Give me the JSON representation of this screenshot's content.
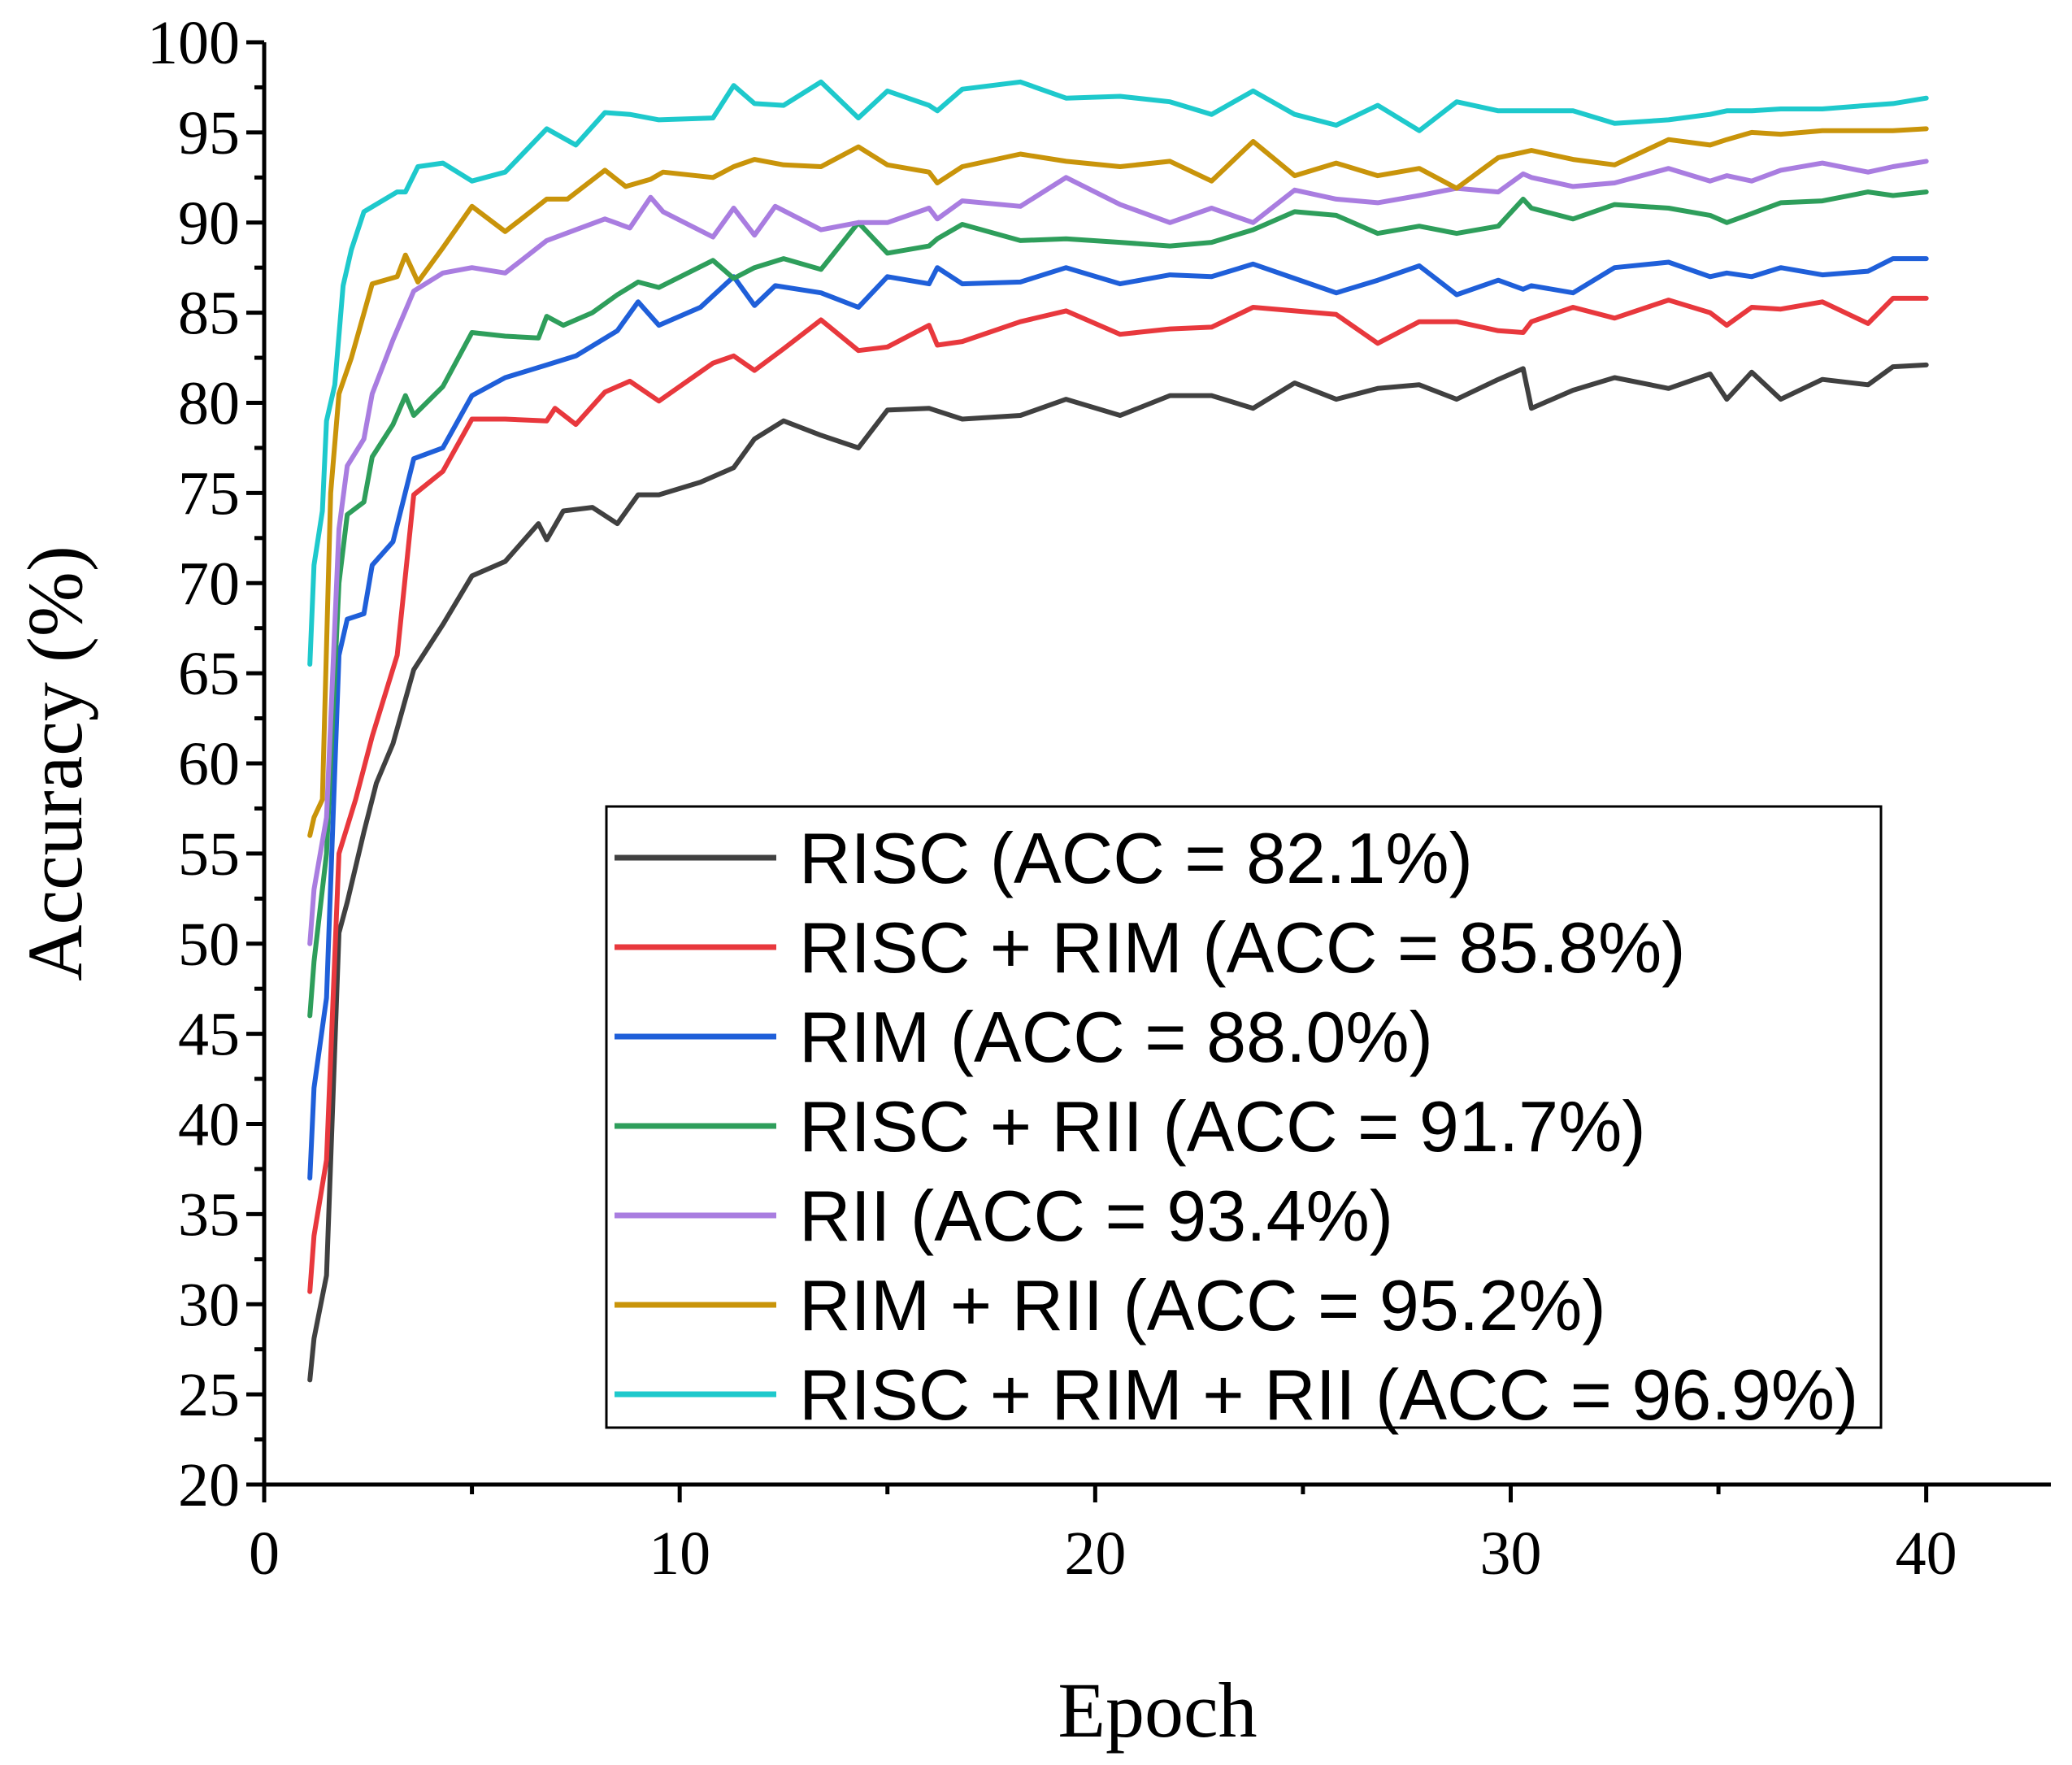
{
  "chart_data": {
    "type": "line",
    "title": "",
    "xlabel": "Epoch",
    "ylabel": "Accuracy (%)",
    "xlim": [
      0,
      43
    ],
    "ylim": [
      20,
      100
    ],
    "xticks": [
      0,
      10,
      20,
      30,
      40
    ],
    "yticks": [
      20,
      25,
      30,
      35,
      40,
      45,
      50,
      55,
      60,
      65,
      70,
      75,
      80,
      85,
      90,
      95,
      100
    ],
    "grid": false,
    "legend_position": "bottom-right",
    "series": [
      {
        "name": "RISC (ACC = 82.1%)",
        "color": "#404040",
        "x": [
          1.1,
          1.2,
          1.5,
          1.8,
          2.0,
          2.4,
          2.7,
          3.1,
          3.6,
          4.3,
          5.0,
          5.8,
          6.6,
          6.8,
          7.2,
          7.9,
          8.5,
          9.0,
          9.5,
          10.5,
          11.3,
          11.8,
          12.5,
          13.4,
          14.3,
          15.0,
          16.0,
          16.8,
          18.2,
          19.3,
          20.6,
          21.8,
          22.8,
          23.8,
          24.8,
          25.8,
          26.8,
          27.8,
          28.7,
          29.7,
          30.3,
          30.5,
          31.5,
          32.5,
          33.8,
          34.8,
          35.2,
          35.8,
          36.5,
          37.5,
          38.6,
          39.2,
          40.0
        ],
        "values": [
          25.8,
          28.1,
          31.6,
          50.6,
          52.3,
          56.2,
          58.9,
          61.1,
          65.2,
          67.7,
          70.4,
          71.2,
          73.3,
          72.4,
          74.0,
          74.2,
          73.3,
          74.9,
          74.9,
          75.6,
          76.4,
          78.0,
          79.0,
          78.2,
          77.5,
          79.6,
          79.7,
          79.1,
          79.3,
          80.2,
          79.3,
          80.4,
          80.4,
          79.7,
          81.1,
          80.2,
          80.8,
          81.0,
          80.2,
          81.3,
          81.9,
          79.7,
          80.7,
          81.4,
          80.8,
          81.6,
          80.2,
          81.7,
          80.2,
          81.3,
          81.0,
          82.0,
          82.1
        ]
      },
      {
        "name": "RISC + RIM (ACC = 85.8%)",
        "color": "#e8383d",
        "x": [
          1.1,
          1.2,
          1.5,
          1.8,
          2.2,
          2.6,
          3.2,
          3.6,
          4.3,
          5.0,
          5.8,
          6.8,
          7.0,
          7.5,
          8.2,
          8.8,
          9.5,
          10.8,
          11.3,
          11.8,
          12.5,
          13.4,
          14.3,
          15.0,
          16.0,
          16.2,
          16.8,
          18.2,
          19.3,
          20.6,
          21.8,
          22.8,
          23.8,
          24.8,
          25.8,
          26.8,
          27.8,
          28.7,
          29.7,
          30.3,
          30.5,
          31.5,
          32.5,
          33.8,
          34.8,
          35.2,
          35.8,
          36.5,
          37.5,
          38.6,
          39.2,
          40.0
        ],
        "values": [
          30.7,
          33.8,
          38.0,
          55.0,
          58.0,
          61.5,
          66.0,
          74.9,
          76.2,
          79.1,
          79.1,
          79.0,
          79.7,
          78.8,
          80.6,
          81.2,
          80.1,
          82.2,
          82.6,
          81.8,
          83.0,
          84.6,
          82.9,
          83.1,
          84.3,
          83.2,
          83.4,
          84.5,
          85.1,
          83.8,
          84.1,
          84.2,
          85.3,
          85.1,
          84.9,
          83.3,
          84.5,
          84.5,
          84.0,
          83.9,
          84.5,
          85.3,
          84.7,
          85.7,
          85.0,
          84.3,
          85.3,
          85.2,
          85.6,
          84.4,
          85.8,
          85.8
        ]
      },
      {
        "name": "RIM (ACC = 88.0%)",
        "color": "#1f5fd9",
        "x": [
          1.1,
          1.2,
          1.5,
          1.8,
          2.0,
          2.4,
          2.6,
          3.1,
          3.6,
          4.3,
          5.0,
          5.8,
          6.8,
          7.5,
          8.5,
          9.0,
          9.5,
          10.5,
          11.3,
          11.8,
          12.3,
          13.4,
          14.3,
          15.0,
          16.0,
          16.2,
          16.8,
          18.2,
          19.3,
          20.6,
          21.8,
          22.8,
          23.8,
          24.8,
          25.8,
          26.8,
          27.8,
          28.7,
          29.7,
          30.3,
          30.5,
          31.5,
          32.5,
          33.8,
          34.8,
          35.2,
          35.8,
          36.5,
          37.5,
          38.6,
          39.2,
          40.0
        ],
        "values": [
          37.0,
          42.0,
          47.0,
          66.0,
          68.0,
          68.3,
          71.0,
          72.3,
          76.9,
          77.5,
          80.4,
          81.4,
          82.1,
          82.6,
          84.0,
          85.6,
          84.3,
          85.3,
          87.0,
          85.4,
          86.5,
          86.1,
          85.3,
          87.0,
          86.6,
          87.5,
          86.6,
          86.7,
          87.5,
          86.6,
          87.1,
          87.0,
          87.7,
          86.9,
          86.1,
          86.8,
          87.6,
          86.0,
          86.8,
          86.3,
          86.5,
          86.1,
          87.5,
          87.8,
          87.0,
          87.2,
          87.0,
          87.5,
          87.1,
          87.3,
          88.0,
          88.0
        ]
      },
      {
        "name": "RISC + RII (ACC = 91.7%)",
        "color": "#2e9e5b",
        "x": [
          1.1,
          1.2,
          1.5,
          1.8,
          2.0,
          2.4,
          2.6,
          3.1,
          3.4,
          3.6,
          4.3,
          5.0,
          5.8,
          6.6,
          6.8,
          7.2,
          7.9,
          8.5,
          9.0,
          9.5,
          10.8,
          11.3,
          11.8,
          12.5,
          13.4,
          14.3,
          15.0,
          16.0,
          16.2,
          16.8,
          18.2,
          19.3,
          20.6,
          21.8,
          22.8,
          23.8,
          24.8,
          25.8,
          26.8,
          27.8,
          28.7,
          29.7,
          30.3,
          30.5,
          31.5,
          32.5,
          33.8,
          34.8,
          35.2,
          35.8,
          36.5,
          37.5,
          38.6,
          39.2,
          40.0
        ],
        "values": [
          46.0,
          49.0,
          55.0,
          70.0,
          73.8,
          74.5,
          77.0,
          78.8,
          80.4,
          79.3,
          80.9,
          83.9,
          83.7,
          83.6,
          84.8,
          84.3,
          85.0,
          86.0,
          86.7,
          86.4,
          87.9,
          86.9,
          87.5,
          88.0,
          87.4,
          90.0,
          88.3,
          88.7,
          89.1,
          89.9,
          89.0,
          89.1,
          88.9,
          88.7,
          88.9,
          89.6,
          90.6,
          90.4,
          89.4,
          89.8,
          89.4,
          89.8,
          91.3,
          90.8,
          90.2,
          91.0,
          90.8,
          90.4,
          90.0,
          90.5,
          91.1,
          91.2,
          91.7,
          91.5,
          91.7
        ]
      },
      {
        "name": "RII (ACC = 93.4%)",
        "color": "#a97de0",
        "x": [
          1.1,
          1.2,
          1.5,
          1.8,
          2.0,
          2.4,
          2.6,
          3.1,
          3.6,
          4.3,
          5.0,
          5.8,
          6.8,
          7.5,
          8.2,
          8.8,
          9.3,
          9.6,
          10.8,
          11.3,
          11.8,
          12.3,
          13.4,
          14.3,
          15.0,
          16.0,
          16.2,
          16.8,
          18.2,
          19.3,
          20.6,
          21.8,
          22.8,
          23.8,
          24.8,
          25.8,
          26.8,
          27.8,
          28.7,
          29.7,
          30.3,
          30.5,
          31.5,
          32.5,
          33.8,
          34.8,
          35.2,
          35.8,
          36.5,
          37.5,
          38.6,
          39.2,
          40.0
        ],
        "values": [
          50.0,
          53.0,
          57.0,
          73.0,
          76.5,
          78.0,
          80.5,
          83.5,
          86.2,
          87.2,
          87.5,
          87.2,
          89.0,
          89.6,
          90.2,
          89.7,
          91.4,
          90.6,
          89.2,
          90.8,
          89.3,
          90.9,
          89.6,
          90.0,
          90.0,
          90.8,
          90.2,
          91.2,
          90.9,
          92.5,
          91.0,
          90.0,
          90.8,
          90.0,
          91.8,
          91.3,
          91.1,
          91.5,
          91.9,
          91.7,
          92.7,
          92.5,
          92.0,
          92.2,
          93.0,
          92.3,
          92.6,
          92.3,
          92.9,
          93.3,
          92.8,
          93.1,
          93.4
        ]
      },
      {
        "name": "RIM + RII (ACC = 95.2%)",
        "color": "#c9940a",
        "x": [
          1.1,
          1.2,
          1.4,
          1.6,
          1.8,
          2.1,
          2.6,
          3.2,
          3.4,
          3.7,
          4.3,
          5.0,
          5.8,
          6.8,
          7.3,
          8.2,
          8.7,
          9.3,
          9.6,
          10.8,
          11.3,
          11.8,
          12.5,
          13.4,
          14.3,
          15.0,
          16.0,
          16.2,
          16.8,
          18.2,
          19.3,
          20.6,
          21.8,
          22.8,
          23.8,
          24.8,
          25.8,
          26.8,
          27.8,
          28.7,
          29.7,
          30.3,
          30.5,
          31.5,
          32.5,
          33.8,
          34.8,
          35.2,
          35.8,
          36.5,
          37.5,
          38.6,
          39.2,
          40.0
        ],
        "values": [
          56.0,
          57.0,
          58.0,
          75.0,
          80.5,
          82.5,
          86.6,
          87.0,
          88.2,
          86.7,
          88.6,
          90.9,
          89.5,
          91.3,
          91.3,
          92.9,
          92.0,
          92.4,
          92.8,
          92.5,
          93.1,
          93.5,
          93.2,
          93.1,
          94.2,
          93.2,
          92.8,
          92.2,
          93.1,
          93.8,
          93.4,
          93.1,
          93.4,
          92.3,
          94.5,
          92.6,
          93.3,
          92.6,
          93.0,
          91.9,
          93.6,
          93.9,
          94.0,
          93.5,
          93.2,
          94.6,
          94.3,
          94.6,
          95.0,
          94.9,
          95.1,
          95.1,
          95.1,
          95.2
        ]
      },
      {
        "name": "RISC + RIM + RII (ACC = 96.9%)",
        "color": "#1ec9cc",
        "x": [
          1.1,
          1.2,
          1.4,
          1.5,
          1.7,
          1.9,
          2.1,
          2.4,
          3.2,
          3.4,
          3.7,
          4.3,
          5.0,
          5.8,
          6.8,
          7.5,
          8.2,
          8.8,
          9.5,
          10.8,
          11.3,
          11.8,
          12.5,
          13.4,
          14.3,
          15.0,
          16.0,
          16.2,
          16.8,
          18.2,
          19.3,
          20.6,
          21.8,
          22.8,
          23.8,
          24.8,
          25.8,
          26.8,
          27.8,
          28.7,
          29.7,
          30.3,
          30.5,
          31.5,
          32.5,
          33.8,
          34.8,
          35.2,
          35.8,
          36.5,
          37.5,
          38.6,
          39.2,
          40.0
        ],
        "values": [
          65.5,
          71.0,
          74.0,
          79.0,
          81.0,
          86.5,
          88.5,
          90.6,
          91.7,
          91.7,
          93.1,
          93.3,
          92.3,
          92.8,
          95.2,
          94.3,
          96.1,
          96.0,
          95.7,
          95.8,
          97.6,
          96.6,
          96.5,
          97.8,
          95.8,
          97.3,
          96.5,
          96.2,
          97.4,
          97.8,
          96.9,
          97.0,
          96.7,
          96.0,
          97.3,
          96.0,
          95.4,
          96.5,
          95.1,
          96.7,
          96.2,
          96.2,
          96.2,
          96.2,
          95.5,
          95.7,
          96.0,
          96.2,
          96.2,
          96.3,
          96.3,
          96.5,
          96.6,
          96.9
        ]
      }
    ]
  }
}
